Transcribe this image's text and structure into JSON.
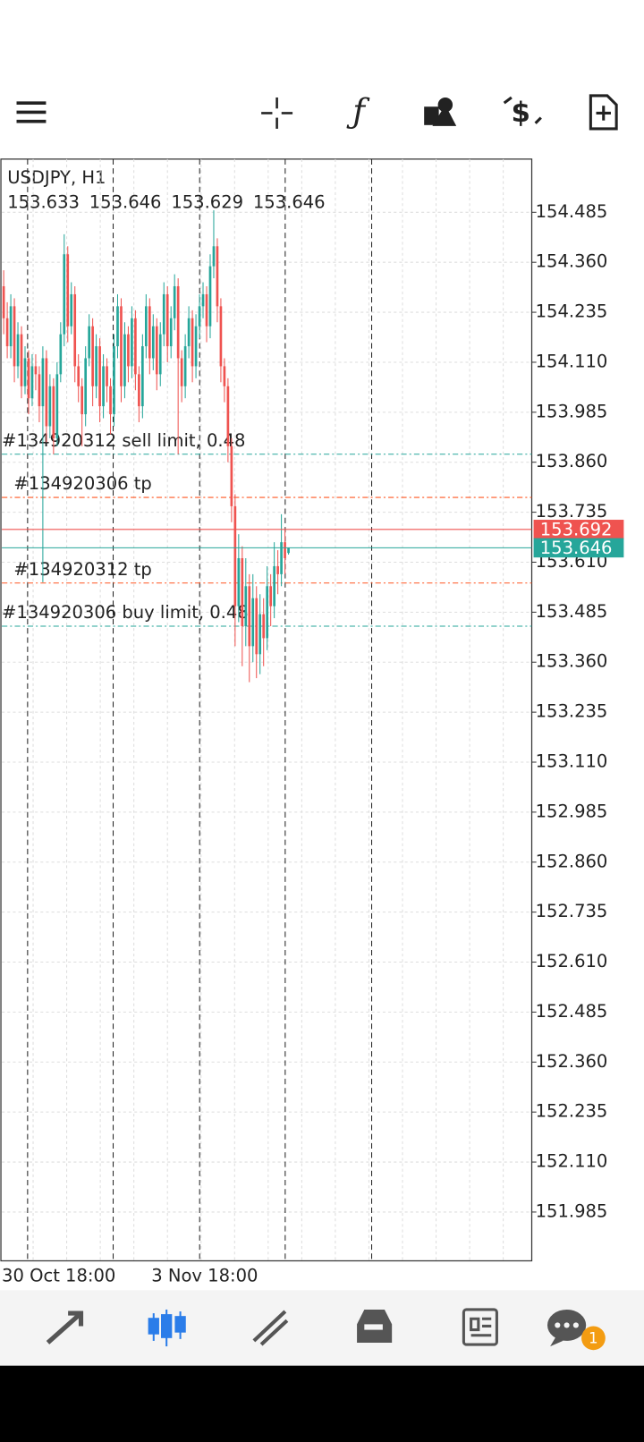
{
  "chart_data": {
    "type": "candlestick",
    "symbol": "USDJPY, H1",
    "header_values": [
      153.633,
      153.646,
      153.629,
      153.646
    ],
    "bull_color": "#26a69a",
    "bear_color": "#ef5350",
    "ylim": [
      151.863,
      154.618
    ],
    "yticks": [
      154.485,
      {
        "value": 154.36,
        "label": "154.360"
      },
      154.235,
      {
        "value": 154.11,
        "label": "154.110"
      },
      153.985,
      {
        "value": 153.86,
        "label": "153.860"
      },
      153.735,
      {
        "value": 153.61,
        "label": "153.610"
      },
      153.485,
      {
        "value": 153.36,
        "label": "153.360"
      },
      153.235,
      {
        "value": 153.11,
        "label": "153.110"
      },
      152.985,
      {
        "value": 152.86,
        "label": "152.860"
      },
      152.735,
      {
        "value": 152.61,
        "label": "152.610"
      },
      152.485,
      {
        "value": 152.36,
        "label": "152.360"
      },
      152.235,
      {
        "value": 152.11,
        "label": "152.110"
      },
      151.985
    ],
    "grid": true,
    "categories": [
      "30 Oct 18:00",
      null,
      null,
      null,
      null,
      null,
      null,
      null,
      null,
      null,
      null,
      null,
      null,
      null,
      null,
      null,
      null,
      null,
      null,
      null,
      null,
      null,
      null,
      null,
      null,
      null,
      null,
      null,
      null,
      null,
      null,
      null,
      null,
      null,
      null,
      null,
      null,
      null,
      null,
      null,
      null,
      null,
      "3 Nov 18:00",
      null,
      null,
      null,
      null,
      null,
      null,
      null,
      null,
      null,
      null,
      null,
      null,
      null,
      null,
      null,
      null,
      null,
      null,
      null,
      null,
      null,
      null,
      null,
      null,
      null,
      null,
      null,
      null,
      null,
      null,
      null,
      null,
      null,
      null,
      null,
      null,
      null,
      null
    ],
    "ohlc": [
      [
        154.3,
        154.34,
        154.18,
        154.22
      ],
      [
        154.22,
        154.26,
        154.12,
        154.15
      ],
      [
        154.15,
        154.28,
        154.12,
        154.25
      ],
      [
        154.25,
        154.27,
        154.06,
        154.1
      ],
      [
        154.1,
        154.21,
        154.07,
        154.18
      ],
      [
        154.18,
        154.2,
        154.02,
        154.05
      ],
      [
        154.05,
        154.15,
        154.03,
        154.12
      ],
      [
        154.12,
        154.14,
        153.98,
        154.02
      ],
      [
        154.02,
        154.13,
        154.0,
        154.1
      ],
      [
        154.1,
        154.13,
        154.04,
        154.08
      ],
      [
        154.08,
        154.1,
        153.96,
        154.0
      ],
      [
        154.0,
        154.15,
        153.56,
        154.12
      ],
      [
        154.12,
        154.14,
        153.91,
        153.95
      ],
      [
        153.95,
        154.08,
        153.92,
        154.05
      ],
      [
        154.05,
        154.07,
        153.88,
        153.92
      ],
      [
        153.92,
        154.11,
        153.9,
        154.08
      ],
      [
        154.08,
        154.21,
        154.06,
        154.18
      ],
      [
        154.18,
        154.43,
        154.15,
        154.38
      ],
      [
        154.38,
        154.4,
        154.16,
        154.2
      ],
      [
        154.2,
        154.31,
        154.18,
        154.28
      ],
      [
        154.28,
        154.3,
        154.06,
        154.1
      ],
      [
        154.1,
        154.13,
        154.01,
        154.05
      ],
      [
        154.05,
        154.07,
        153.9,
        153.98
      ],
      [
        153.98,
        154.15,
        153.95,
        154.12
      ],
      [
        154.12,
        154.23,
        154.1,
        154.2
      ],
      [
        154.2,
        154.22,
        154.0,
        154.05
      ],
      [
        154.05,
        154.18,
        154.02,
        154.15
      ],
      [
        154.15,
        154.17,
        153.96,
        154.0
      ],
      [
        154.0,
        154.13,
        153.97,
        154.1
      ],
      [
        154.1,
        154.12,
        154.01,
        154.05
      ],
      [
        154.05,
        154.07,
        153.93,
        153.98
      ],
      [
        153.98,
        154.18,
        153.95,
        154.15
      ],
      [
        154.15,
        154.28,
        154.12,
        154.25
      ],
      [
        154.25,
        154.27,
        154.01,
        154.05
      ],
      [
        154.05,
        154.21,
        154.02,
        154.18
      ],
      [
        154.18,
        154.2,
        154.06,
        154.1
      ],
      [
        154.1,
        154.25,
        154.07,
        154.22
      ],
      [
        154.22,
        154.24,
        154.04,
        154.08
      ],
      [
        154.08,
        154.1,
        153.96,
        154.0
      ],
      [
        154.0,
        154.18,
        153.97,
        154.15
      ],
      [
        154.15,
        154.28,
        154.12,
        154.25
      ],
      [
        154.25,
        154.27,
        154.08,
        154.12
      ],
      [
        154.12,
        154.23,
        154.09,
        154.2
      ],
      [
        154.2,
        154.22,
        154.04,
        154.08
      ],
      [
        154.08,
        154.21,
        154.05,
        154.18
      ],
      [
        154.18,
        154.31,
        154.15,
        154.28
      ],
      [
        154.28,
        154.3,
        154.11,
        154.15
      ],
      [
        154.15,
        154.25,
        154.12,
        154.22
      ],
      [
        154.22,
        154.33,
        154.19,
        154.3
      ],
      [
        154.3,
        154.32,
        153.88,
        154.12
      ],
      [
        154.12,
        154.14,
        154.01,
        154.05
      ],
      [
        154.05,
        154.18,
        154.02,
        154.15
      ],
      [
        154.15,
        154.25,
        154.12,
        154.22
      ],
      [
        154.22,
        154.24,
        154.06,
        154.1
      ],
      [
        154.1,
        154.23,
        154.07,
        154.2
      ],
      [
        154.2,
        154.28,
        154.17,
        154.25
      ],
      [
        154.25,
        154.31,
        154.22,
        154.28
      ],
      [
        154.28,
        154.3,
        154.16,
        154.2
      ],
      [
        154.2,
        154.38,
        154.17,
        154.35
      ],
      [
        154.35,
        154.49,
        154.32,
        154.4
      ],
      [
        154.4,
        154.42,
        154.21,
        154.25
      ],
      [
        154.25,
        154.27,
        154.06,
        154.1
      ],
      [
        154.1,
        154.12,
        154.01,
        154.05
      ],
      [
        154.05,
        154.07,
        153.86,
        153.9
      ],
      [
        153.9,
        153.92,
        153.71,
        153.75
      ],
      [
        153.75,
        153.78,
        153.4,
        153.5
      ],
      [
        153.5,
        153.68,
        153.46,
        153.62
      ],
      [
        153.62,
        153.65,
        153.35,
        153.45
      ],
      [
        153.45,
        153.62,
        153.4,
        153.55
      ],
      [
        153.55,
        153.58,
        153.31,
        153.4
      ],
      [
        153.4,
        153.58,
        153.36,
        153.52
      ],
      [
        153.52,
        153.55,
        153.32,
        153.38
      ],
      [
        153.38,
        153.53,
        153.33,
        153.48
      ],
      [
        153.48,
        153.52,
        153.35,
        153.42
      ],
      [
        153.42,
        153.6,
        153.39,
        153.55
      ],
      [
        153.55,
        153.58,
        153.45,
        153.5
      ],
      [
        153.5,
        153.66,
        153.47,
        153.6
      ],
      [
        153.6,
        153.64,
        153.53,
        153.58
      ],
      [
        153.58,
        153.73,
        153.55,
        153.66
      ],
      [
        153.66,
        153.69,
        153.58,
        153.62
      ],
      [
        153.633,
        153.646,
        153.629,
        153.646
      ]
    ],
    "orders": [
      {
        "label": "#134920312 sell limit, 0.48",
        "price": 153.88,
        "color": "#26a69a"
      },
      {
        "label": "#134920306 tp",
        "price": 153.772,
        "color": "#ff5722"
      },
      {
        "label": "#134920312 tp",
        "price": 153.558,
        "color": "#ff5722"
      },
      {
        "label": "#134920306 buy limit, 0.48",
        "price": 153.45,
        "color": "#26a69a"
      }
    ],
    "ask": {
      "price": 153.692,
      "color": "#ef5350"
    },
    "bid": {
      "price": 153.646,
      "color": "#26a69a"
    }
  },
  "nav": {
    "badge": 1
  }
}
